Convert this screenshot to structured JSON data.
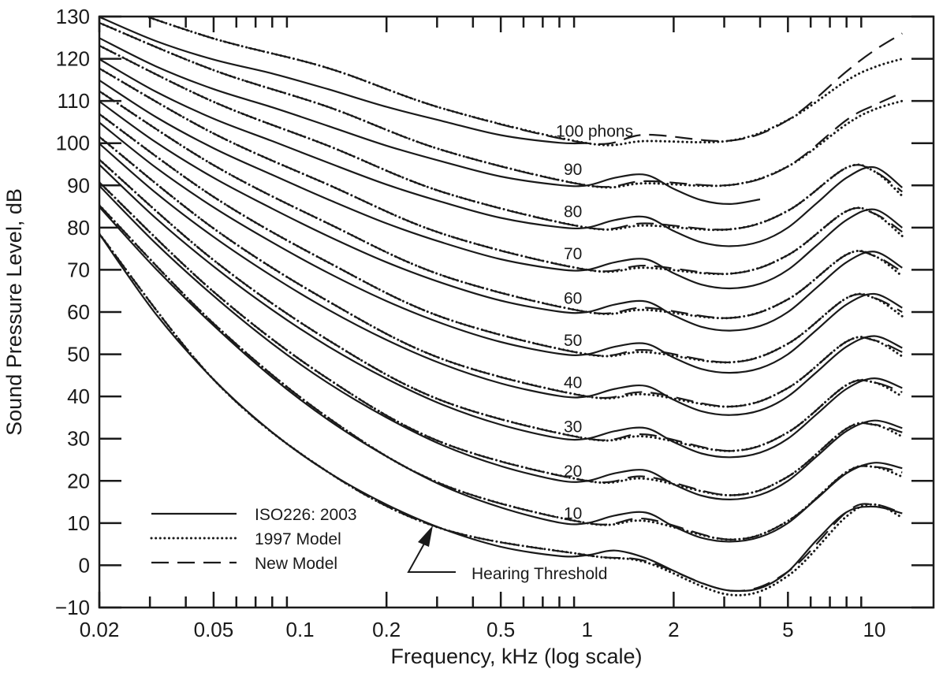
{
  "chart_data": {
    "type": "line",
    "title": "",
    "xlabel": "Frequency, kHz (log scale)",
    "ylabel": "Sound Pressure Level, dB",
    "xscale": "log",
    "xlim": [
      0.02,
      16
    ],
    "ylim": [
      -10,
      130
    ],
    "grid": false,
    "legend_placement": "bottom-left",
    "x_ticks": [
      0.02,
      0.05,
      0.1,
      0.2,
      0.5,
      1,
      2,
      5,
      10
    ],
    "x_tick_labels": [
      "0.02",
      "0.05",
      "0.1",
      "0.2",
      "0.5",
      "1",
      "2",
      "5",
      "10"
    ],
    "y_ticks": [
      -10,
      0,
      10,
      20,
      30,
      40,
      50,
      60,
      70,
      80,
      90,
      100,
      110,
      120,
      130
    ],
    "y_tick_labels": [
      "−10",
      "0",
      "10",
      "20",
      "30",
      "40",
      "50",
      "60",
      "70",
      "80",
      "90",
      "100",
      "110",
      "120",
      "130"
    ],
    "legend": [
      {
        "label": "ISO226: 2003",
        "style": "solid"
      },
      {
        "label": "1997 Model",
        "style": "dotted"
      },
      {
        "label": "New Model",
        "style": "dashed"
      }
    ],
    "annotations": {
      "phon_labels": [
        "100 phons",
        "90",
        "80",
        "70",
        "60",
        "50",
        "40",
        "30",
        "20",
        "10"
      ],
      "hearing_threshold": "Hearing Threshold"
    },
    "iso_frequencies_khz": [
      0.02,
      0.0315,
      0.05,
      0.08,
      0.125,
      0.2,
      0.315,
      0.5,
      0.8,
      1,
      1.25,
      1.6,
      2,
      2.5,
      3.15,
      4,
      5,
      6.3,
      8,
      10,
      12.5
    ],
    "iso_series": [
      {
        "phon": 0,
        "values": [
          78.5,
          59.5,
          44.0,
          31.5,
          22.1,
          14.4,
          8.6,
          4.4,
          2.2,
          2.4,
          3.5,
          1.7,
          -1.3,
          -4.2,
          -6.0,
          -5.4,
          -1.5,
          6.0,
          12.6,
          13.9,
          12.3
        ]
      },
      {
        "phon": 10,
        "values": [
          84.9,
          70.2,
          56.8,
          44.5,
          34.5,
          25.8,
          18.8,
          13.7,
          10.1,
          10.0,
          11.8,
          12.5,
          9.2,
          6.5,
          5.6,
          6.7,
          10.0,
          15.8,
          21.8,
          24.3,
          23.0
        ]
      },
      {
        "phon": 20,
        "values": [
          89.9,
          76.2,
          63.8,
          52.5,
          43.2,
          35.0,
          28.4,
          23.5,
          20.1,
          20.0,
          21.8,
          22.5,
          19.2,
          16.5,
          15.6,
          16.7,
          20.0,
          25.8,
          31.8,
          34.3,
          32.5
        ]
      },
      {
        "phon": 30,
        "values": [
          94.9,
          82.2,
          70.8,
          60.5,
          51.9,
          44.2,
          38.0,
          33.3,
          30.1,
          30.0,
          31.8,
          32.5,
          29.2,
          26.5,
          25.6,
          26.7,
          30.0,
          35.8,
          41.8,
          44.3,
          42.0
        ]
      },
      {
        "phon": 40,
        "values": [
          99.9,
          88.2,
          77.8,
          68.5,
          60.6,
          53.4,
          47.6,
          43.1,
          40.1,
          40.0,
          41.8,
          42.5,
          39.2,
          36.5,
          35.6,
          36.7,
          40.0,
          45.8,
          51.8,
          54.3,
          51.5
        ]
      },
      {
        "phon": 50,
        "values": [
          104.9,
          94.2,
          84.8,
          76.5,
          69.3,
          62.6,
          57.2,
          52.9,
          50.1,
          50.0,
          51.8,
          52.5,
          49.2,
          46.5,
          45.6,
          46.7,
          50.0,
          55.8,
          61.8,
          64.3,
          61.0
        ]
      },
      {
        "phon": 60,
        "values": [
          109.9,
          100.2,
          91.8,
          84.5,
          78.0,
          71.8,
          66.8,
          62.7,
          60.1,
          60.0,
          61.8,
          62.5,
          59.2,
          56.5,
          55.6,
          56.7,
          60.0,
          65.8,
          71.8,
          74.3,
          70.5
        ]
      },
      {
        "phon": 70,
        "values": [
          114.9,
          106.2,
          98.8,
          92.5,
          86.7,
          81.0,
          76.4,
          72.5,
          70.1,
          70.0,
          71.8,
          72.5,
          69.2,
          66.5,
          65.6,
          66.7,
          70.0,
          75.8,
          81.8,
          84.3,
          80.0
        ]
      },
      {
        "phon": 80,
        "values": [
          119.9,
          112.2,
          105.8,
          100.5,
          95.4,
          90.2,
          86.0,
          82.3,
          80.1,
          80.0,
          81.8,
          82.5,
          79.2,
          76.5,
          75.6,
          76.7,
          80.0,
          85.8,
          91.8,
          94.3,
          89.5
        ]
      },
      {
        "phon": 90,
        "values": [
          124.9,
          118.2,
          112.8,
          108.5,
          104.1,
          99.4,
          95.6,
          92.1,
          90.1,
          90.0,
          91.8,
          92.5,
          89.2,
          86.5,
          85.6,
          86.7
        ]
      },
      {
        "phon": 100,
        "values": [
          129.9,
          124.2,
          119.8,
          116.5,
          112.8,
          108.6,
          105.2,
          101.9,
          100.1,
          100.0
        ]
      }
    ],
    "model_frequencies_khz": [
      0.02,
      0.05,
      0.125,
      0.315,
      1,
      1.6,
      3.15,
      5,
      8,
      10,
      12.5
    ],
    "model_1997_series": [
      {
        "phon": 0,
        "values": [
          78.5,
          44.0,
          22.1,
          8.6,
          2.4,
          0.7,
          -7.0,
          -2.5,
          11.6,
          14.4,
          11.3
        ]
      },
      {
        "phon": 10,
        "values": [
          85.3,
          57.3,
          35.0,
          19.1,
          10.0,
          10.5,
          6.1,
          10.5,
          22.1,
          23.3,
          21.0
        ]
      },
      {
        "phon": 20,
        "values": [
          90.7,
          64.8,
          44.2,
          29.0,
          20.0,
          20.5,
          16.6,
          21.0,
          32.4,
          33.3,
          30.5
        ]
      },
      {
        "phon": 30,
        "values": [
          96.1,
          72.3,
          53.4,
          38.9,
          30.0,
          30.5,
          27.1,
          31.5,
          42.7,
          43.3,
          40.0
        ]
      },
      {
        "phon": 40,
        "values": [
          101.5,
          79.8,
          62.6,
          48.8,
          40.0,
          40.5,
          37.6,
          42.0,
          53.0,
          53.3,
          49.5
        ]
      },
      {
        "phon": 50,
        "values": [
          106.9,
          87.3,
          71.8,
          58.7,
          50.0,
          50.5,
          48.1,
          52.5,
          63.3,
          63.3,
          59.0
        ]
      },
      {
        "phon": 60,
        "values": [
          112.3,
          94.8,
          81.0,
          68.6,
          60.0,
          60.5,
          58.6,
          63.0,
          73.6,
          73.3,
          68.5
        ]
      },
      {
        "phon": 70,
        "values": [
          117.7,
          102.3,
          90.2,
          78.5,
          70.0,
          70.5,
          69.1,
          73.5,
          83.9,
          83.3,
          78.0
        ]
      },
      {
        "phon": 80,
        "values": [
          123.1,
          109.8,
          99.4,
          88.4,
          80.0,
          80.5,
          79.6,
          84.0,
          94.2,
          93.3,
          87.5
        ]
      },
      {
        "phon": 90,
        "values": [
          128.5,
          117.3,
          108.6,
          98.3,
          90.0,
          90.5,
          90.1,
          94.5,
          104.5,
          108.0,
          110.0
        ]
      },
      {
        "phon": 100,
        "values": [
          133.9,
          124.8,
          117.8,
          108.2,
          100.0,
          100.5,
          100.6,
          105.5,
          114.8,
          118.0,
          120.0
        ]
      }
    ],
    "new_model_series": [
      {
        "phon": 0,
        "values": [
          78.5,
          44.0,
          22.1,
          8.6,
          2.4,
          1.0,
          -6.0,
          -1.5,
          12.6,
          14.4,
          12.3
        ]
      },
      {
        "phon": 10,
        "values": [
          85.3,
          57.3,
          35.0,
          19.1,
          10.0,
          11.0,
          6.1,
          10.5,
          22.1,
          23.3,
          22.0
        ]
      },
      {
        "phon": 20,
        "values": [
          90.7,
          64.8,
          44.2,
          29.0,
          20.0,
          21.0,
          16.6,
          21.0,
          32.4,
          33.3,
          31.5
        ]
      },
      {
        "phon": 30,
        "values": [
          96.1,
          72.3,
          53.4,
          38.9,
          30.0,
          31.0,
          27.1,
          31.5,
          42.7,
          43.3,
          41.0
        ]
      },
      {
        "phon": 40,
        "values": [
          101.5,
          79.8,
          62.6,
          48.8,
          40.0,
          41.0,
          37.6,
          42.0,
          53.0,
          53.3,
          50.5
        ]
      },
      {
        "phon": 50,
        "values": [
          106.9,
          87.3,
          71.8,
          58.7,
          50.0,
          51.0,
          48.1,
          52.5,
          63.3,
          63.3,
          60.0
        ]
      },
      {
        "phon": 60,
        "values": [
          112.3,
          94.8,
          81.0,
          68.6,
          60.0,
          61.0,
          58.6,
          63.0,
          73.6,
          73.3,
          69.5
        ]
      },
      {
        "phon": 70,
        "values": [
          117.7,
          102.3,
          90.2,
          78.5,
          70.0,
          71.0,
          69.1,
          73.5,
          83.9,
          83.3,
          79.0
        ]
      },
      {
        "phon": 80,
        "values": [
          123.1,
          109.8,
          99.4,
          88.4,
          80.0,
          81.0,
          79.6,
          84.0,
          94.2,
          93.3,
          88.5
        ]
      },
      {
        "phon": 90,
        "values": [
          128.5,
          117.3,
          108.6,
          98.3,
          90.0,
          91.0,
          90.1,
          94.5,
          105.5,
          109.0,
          112.0
        ]
      },
      {
        "phon": 100,
        "values": [
          133.9,
          124.8,
          117.8,
          108.2,
          100.0,
          102.0,
          100.6,
          105.5,
          117.0,
          122.0,
          126.0
        ]
      }
    ],
    "colors": {
      "ink": "#1a1a1a",
      "background": "#ffffff"
    }
  }
}
